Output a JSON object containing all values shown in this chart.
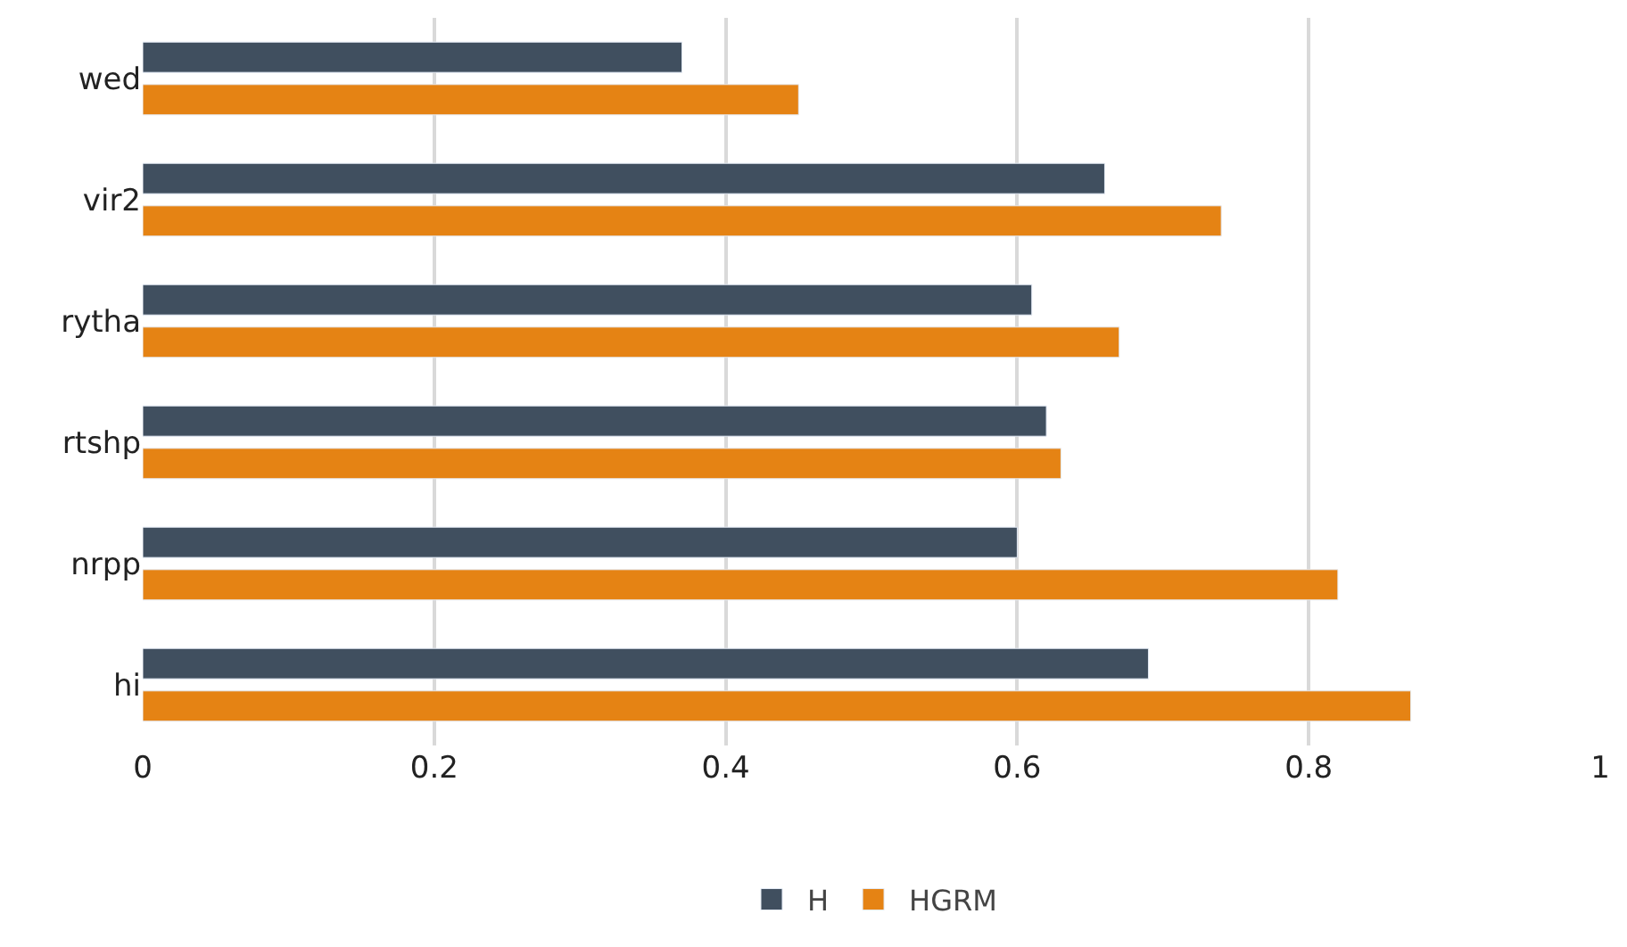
{
  "chart_data": {
    "type": "bar",
    "orientation": "horizontal",
    "categories": [
      "wed",
      "vir2",
      "rytha",
      "rtshp",
      "nrpp",
      "hi"
    ],
    "series": [
      {
        "name": "H",
        "color": "#404f5f",
        "values": [
          0.37,
          0.66,
          0.61,
          0.62,
          0.6,
          0.69
        ]
      },
      {
        "name": "HGRM",
        "color": "#e58314",
        "values": [
          0.45,
          0.74,
          0.67,
          0.63,
          0.82,
          0.87
        ]
      }
    ],
    "xlim": [
      0,
      1
    ],
    "xticks": [
      0,
      0.2,
      0.4,
      0.6,
      0.8,
      1
    ],
    "grid": "x",
    "legend": "bottom"
  }
}
